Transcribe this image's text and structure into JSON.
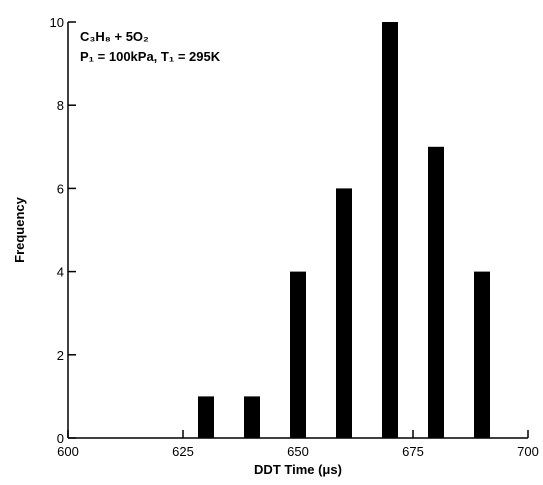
{
  "chart_data": {
    "type": "bar",
    "annotations": [
      "C₃H₈ + 5O₂",
      "P₁ = 100kPa, T₁ = 295K"
    ],
    "x_label": "DDT Time (μs)",
    "y_label": "Frequency",
    "x": [
      630,
      640,
      650,
      660,
      670,
      680,
      690
    ],
    "values": [
      1,
      1,
      4,
      6,
      10,
      7,
      4
    ],
    "color": "#000000",
    "xlim": [
      600,
      700
    ],
    "xticks": [
      600,
      625,
      650,
      675,
      700
    ],
    "ylim": [
      0,
      10
    ],
    "yticks": [
      0,
      2,
      4,
      6,
      8,
      10
    ]
  }
}
